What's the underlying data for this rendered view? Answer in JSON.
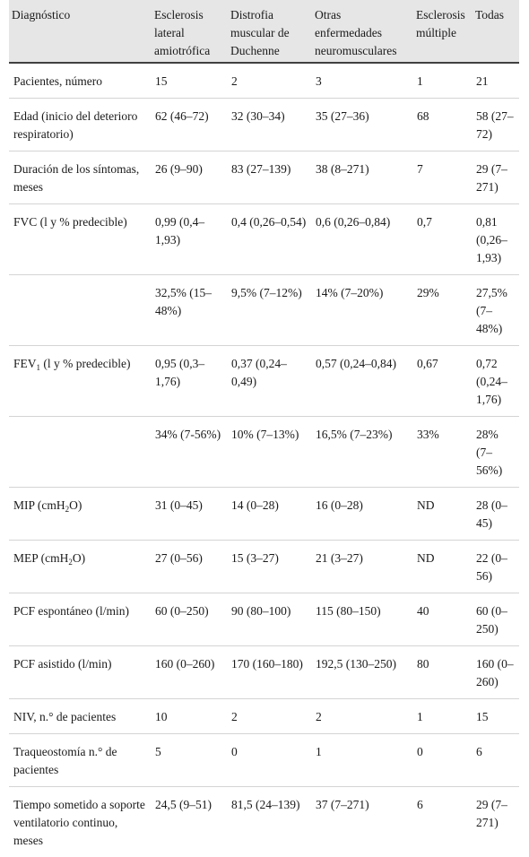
{
  "table": {
    "headers": [
      "Diagnóstico",
      "Esclerosis lateral amiotrófica",
      "Distrofia muscular de Duchenne",
      "Otras enfermedades neuromusculares",
      "Esclerosis múltiple",
      "Todas"
    ],
    "rows": [
      {
        "label": "Pacientes, número",
        "cells": [
          "15",
          "2",
          "3",
          "1",
          "21"
        ]
      },
      {
        "label": "Edad (inicio del deterioro respiratorio)",
        "cells": [
          "62 (46–72)",
          "32 (30–34)",
          "35 (27–36)",
          "68",
          "58 (27–72)"
        ]
      },
      {
        "label": "Duración de los síntomas, meses",
        "cells": [
          "26 (9–90)",
          "83 (27–139)",
          "38 (8–271)",
          "7",
          "29 (7–271)"
        ]
      },
      {
        "label": "FVC (l y % predecible)",
        "cells": [
          "0,99 (0,4–1,93)",
          "0,4 (0,26–0,54)",
          "0,6 (0,26–0,84)",
          "0,7",
          "0,81 (0,26–1,93)"
        ]
      },
      {
        "label": "",
        "cells": [
          "32,5% (15–48%)",
          "9,5% (7–12%)",
          "14% (7–20%)",
          "29%",
          "27,5% (7–48%)"
        ]
      },
      {
        "label_pre": "FEV",
        "label_sub": "1",
        "label_post": " (l y % predecible)",
        "cells": [
          "0,95 (0,3–1,76)",
          "0,37 (0,24–0,49)",
          "0,57 (0,24–0,84)",
          "0,67",
          "0,72 (0,24–1,76)"
        ]
      },
      {
        "label": "",
        "cells": [
          "34% (7-56%)",
          "10% (7–13%)",
          "16,5% (7–23%)",
          "33%",
          "28% (7–56%)"
        ]
      },
      {
        "label_pre": "MIP (cmH",
        "label_sub": "2",
        "label_post": "O)",
        "cells": [
          "31 (0–45)",
          "14 (0–28)",
          "16 (0–28)",
          "ND",
          "28 (0–45)"
        ]
      },
      {
        "label_pre": "MEP (cmH",
        "label_sub": "2",
        "label_post": "O)",
        "cells": [
          "27 (0–56)",
          "15 (3–27)",
          "21 (3–27)",
          "ND",
          "22 (0–56)"
        ]
      },
      {
        "label": "PCF espontáneo (l/min)",
        "cells": [
          "60 (0–250)",
          "90 (80–100)",
          "115 (80–150)",
          "40",
          "60 (0–250)"
        ]
      },
      {
        "label": "PCF asistido (l/min)",
        "cells": [
          "160 (0–260)",
          "170 (160–180)",
          "192,5 (130–250)",
          "80",
          "160 (0–260)"
        ]
      },
      {
        "label": "NIV, n.° de pacientes",
        "cells": [
          "10",
          "2",
          "2",
          "1",
          "15"
        ]
      },
      {
        "label": "Traqueostomía n.° de pacientes",
        "cells": [
          "5",
          "0",
          "1",
          "0",
          "6"
        ]
      },
      {
        "label": "Tiempo sometido a soporte ventilatorio continuo, meses",
        "cells": [
          "24,5 (9–51)",
          "81,5 (24–139)",
          "37 (7–271)",
          "6",
          "29 (7–271)"
        ]
      }
    ]
  }
}
